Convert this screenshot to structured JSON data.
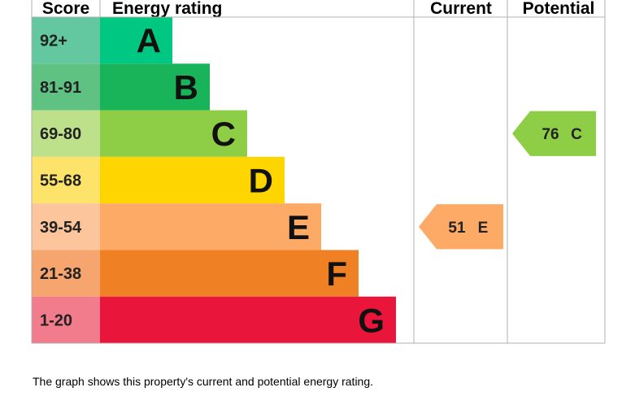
{
  "headers": {
    "score": "Score",
    "rating": "Energy rating",
    "current": "Current",
    "potential": "Potential"
  },
  "bands": [
    {
      "score": "92+",
      "letter": "A",
      "score_color": "#63c7a0",
      "color": "#00c781"
    },
    {
      "score": "81-91",
      "letter": "B",
      "score_color": "#5fc182",
      "color": "#19b459"
    },
    {
      "score": "69-80",
      "letter": "C",
      "score_color": "#bde08a",
      "color": "#8dce46"
    },
    {
      "score": "55-68",
      "letter": "D",
      "score_color": "#fde36a",
      "color": "#ffd500"
    },
    {
      "score": "39-54",
      "letter": "E",
      "score_color": "#fcc59b",
      "color": "#fcaa65"
    },
    {
      "score": "21-38",
      "letter": "F",
      "score_color": "#f5a56d",
      "color": "#ef8023"
    },
    {
      "score": "1-20",
      "letter": "G",
      "score_color": "#f27b8c",
      "color": "#e9153b"
    }
  ],
  "current": {
    "value": 51,
    "letter": "E"
  },
  "potential": {
    "value": 76,
    "letter": "C"
  },
  "footnote": "The graph shows this property's current and potential energy rating."
}
